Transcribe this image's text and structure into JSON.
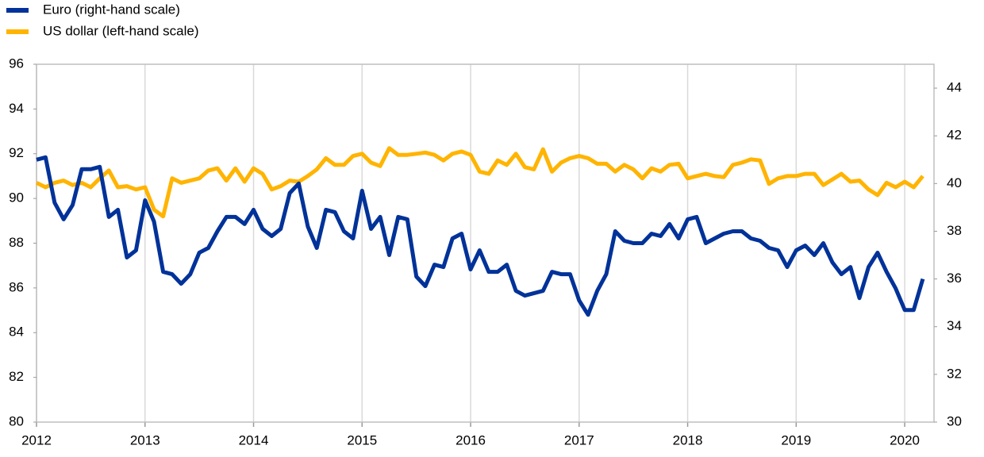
{
  "chart_data": {
    "type": "line",
    "x": [
      2012,
      2012.083,
      2012.167,
      2012.25,
      2012.333,
      2012.417,
      2012.5,
      2012.583,
      2012.667,
      2012.75,
      2012.833,
      2012.917,
      2013,
      2013.083,
      2013.167,
      2013.25,
      2013.333,
      2013.417,
      2013.5,
      2013.583,
      2013.667,
      2013.75,
      2013.833,
      2013.917,
      2014,
      2014.083,
      2014.167,
      2014.25,
      2014.333,
      2014.417,
      2014.5,
      2014.583,
      2014.667,
      2014.75,
      2014.833,
      2014.917,
      2015,
      2015.083,
      2015.167,
      2015.25,
      2015.333,
      2015.417,
      2015.5,
      2015.583,
      2015.667,
      2015.75,
      2015.833,
      2015.917,
      2016,
      2016.083,
      2016.167,
      2016.25,
      2016.333,
      2016.417,
      2016.5,
      2016.583,
      2016.667,
      2016.75,
      2016.833,
      2016.917,
      2017,
      2017.083,
      2017.167,
      2017.25,
      2017.333,
      2017.417,
      2017.5,
      2017.583,
      2017.667,
      2017.75,
      2017.833,
      2017.917,
      2018,
      2018.083,
      2018.167,
      2018.25,
      2018.333,
      2018.417,
      2018.5,
      2018.583,
      2018.667,
      2018.75,
      2018.833,
      2018.917,
      2019,
      2019.083,
      2019.167,
      2019.25,
      2019.333,
      2019.417,
      2019.5,
      2019.583,
      2019.667,
      2019.75,
      2019.833,
      2019.917,
      2020,
      2020.083,
      2020.167
    ],
    "series": [
      {
        "name": "Euro (right-hand scale)",
        "color": "#003299",
        "axis": "y2",
        "values": [
          41.0,
          41.1,
          39.2,
          38.5,
          39.1,
          40.6,
          40.6,
          40.7,
          38.6,
          38.9,
          36.9,
          37.2,
          39.3,
          38.4,
          36.3,
          36.2,
          35.8,
          36.2,
          37.1,
          37.3,
          38.0,
          38.6,
          38.6,
          38.3,
          38.9,
          38.1,
          37.8,
          38.1,
          39.6,
          40.0,
          38.2,
          37.3,
          38.9,
          38.8,
          38.0,
          37.7,
          39.7,
          38.1,
          38.6,
          37.0,
          38.6,
          38.5,
          36.1,
          35.7,
          36.6,
          36.5,
          37.7,
          37.9,
          36.4,
          37.2,
          36.3,
          36.3,
          36.6,
          35.5,
          35.3,
          35.4,
          35.5,
          36.3,
          36.2,
          36.2,
          35.1,
          34.5,
          35.5,
          36.2,
          38.0,
          37.6,
          37.5,
          37.5,
          37.9,
          37.8,
          38.3,
          37.7,
          38.5,
          38.6,
          37.5,
          37.7,
          37.9,
          38.0,
          38.0,
          37.7,
          37.6,
          37.3,
          37.2,
          36.5,
          37.2,
          37.4,
          37.0,
          37.5,
          36.7,
          36.2,
          36.5,
          35.2,
          36.5,
          37.1,
          36.3,
          35.6,
          34.7,
          34.7,
          36.0
        ]
      },
      {
        "name": "US dollar (left-hand scale)",
        "color": "#ffb400",
        "values": [
          90.7,
          90.5,
          90.7,
          90.8,
          90.6,
          90.7,
          90.5,
          90.9,
          91.25,
          90.5,
          90.55,
          90.4,
          90.5,
          89.5,
          89.2,
          90.9,
          90.7,
          90.8,
          90.9,
          91.25,
          91.35,
          90.8,
          91.35,
          90.75,
          91.35,
          91.1,
          90.4,
          90.55,
          90.8,
          90.75,
          91.0,
          91.3,
          91.8,
          91.5,
          91.5,
          91.9,
          92.0,
          91.6,
          91.45,
          92.25,
          91.95,
          91.95,
          92.0,
          92.05,
          91.95,
          91.7,
          92.0,
          92.1,
          91.95,
          91.2,
          91.1,
          91.7,
          91.5,
          92.0,
          91.4,
          91.3,
          92.2,
          91.2,
          91.6,
          91.8,
          91.9,
          91.8,
          91.55,
          91.55,
          91.2,
          91.5,
          91.3,
          90.9,
          91.35,
          91.2,
          91.5,
          91.55,
          90.9,
          91.0,
          91.1,
          91.0,
          90.95,
          91.5,
          91.6,
          91.75,
          91.7,
          90.65,
          90.9,
          91.0,
          91.0,
          91.1,
          91.1,
          90.6,
          90.85,
          91.1,
          90.75,
          90.8,
          90.4,
          90.15,
          90.7,
          90.5,
          90.75,
          90.5,
          91.0
        ]
      }
    ],
    "xlim": [
      2012,
      2020.27
    ],
    "xticks": [
      2012,
      2013,
      2014,
      2015,
      2016,
      2017,
      2018,
      2019,
      2020
    ],
    "ylim": [
      80,
      96
    ],
    "yticks": [
      80,
      82,
      84,
      86,
      88,
      90,
      92,
      94,
      96
    ],
    "y2lim": [
      30,
      45
    ],
    "y2ticks": [
      30,
      32,
      34,
      36,
      38,
      40,
      42,
      44
    ],
    "grid": true,
    "legend": "top-left"
  }
}
